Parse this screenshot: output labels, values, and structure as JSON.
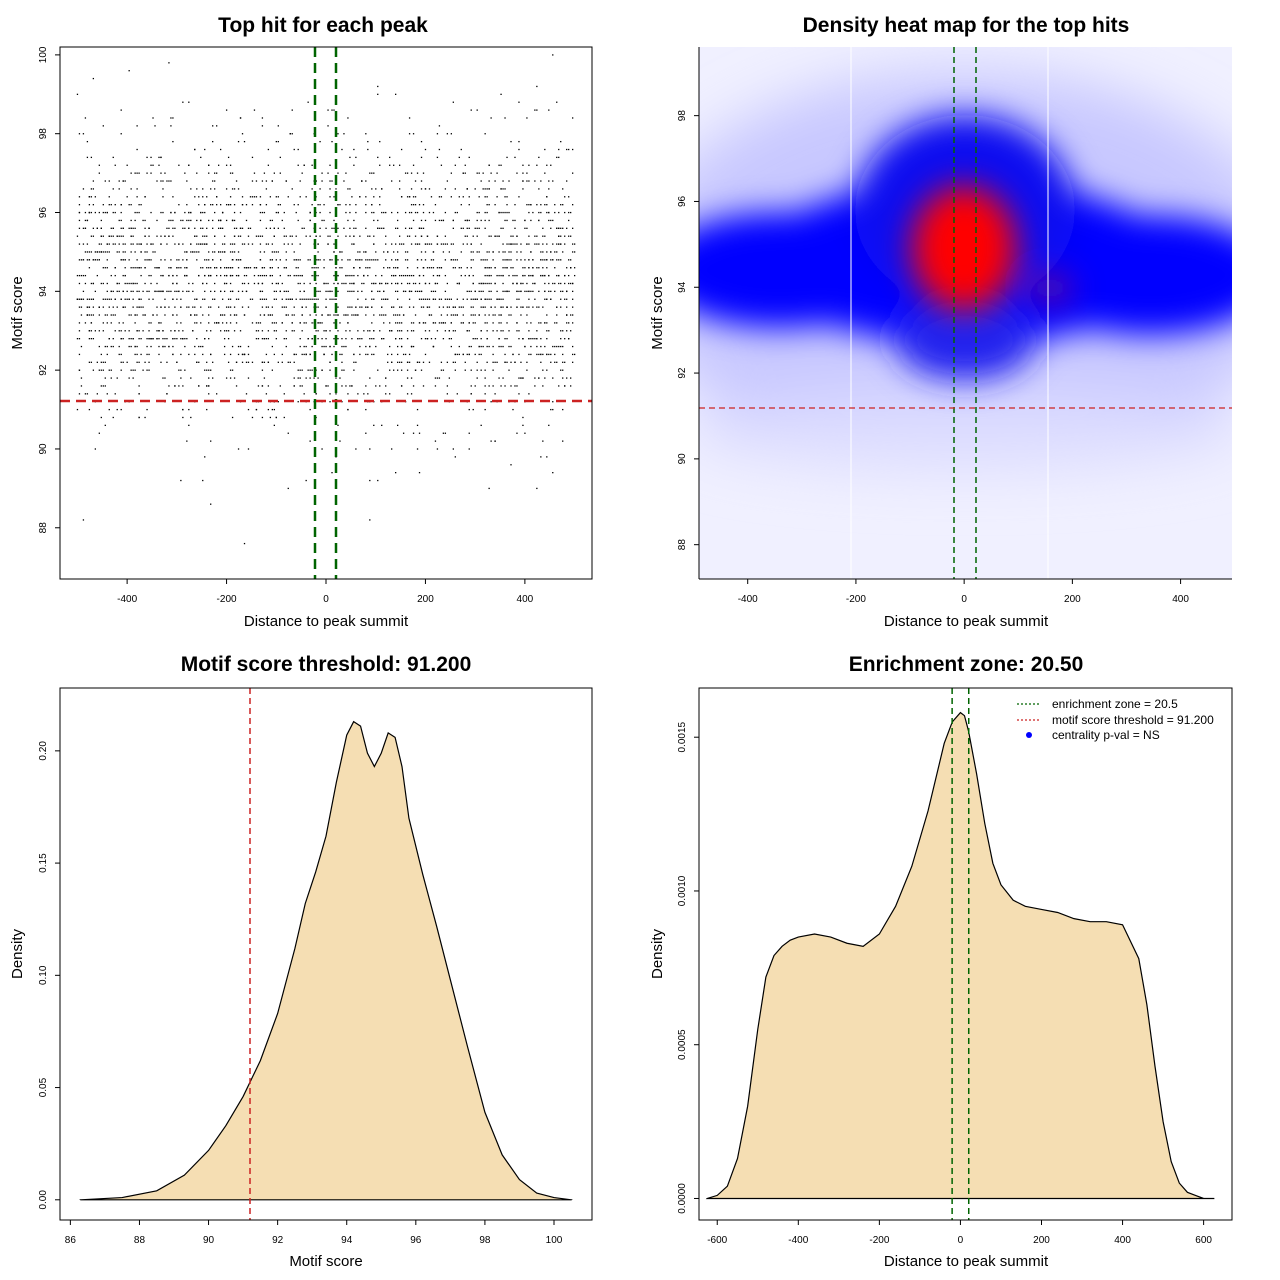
{
  "chart_data": [
    {
      "id": "p1",
      "type": "scatter",
      "title": "Top hit for each peak",
      "xlabel": "Distance to peak summit",
      "ylabel": "Motif score",
      "xlim": [
        -535,
        535
      ],
      "ylim": [
        86.7,
        100.2
      ],
      "xticks": [
        "-400",
        "-200",
        "0",
        "200",
        "400"
      ],
      "yticks": [
        "88",
        "90",
        "92",
        "94",
        "96",
        "98",
        "100"
      ],
      "vlines": [
        -20.5,
        20.5
      ],
      "hline": 91.2,
      "line_colors": {
        "enrichment_zone": "#006400",
        "threshold": "#cc2222"
      },
      "points": {
        "count": 3200,
        "x_range": [
          -500,
          500
        ],
        "mode_y": 94.2,
        "note": "top-hit score vs distance for each peak, approx. uniform in distance, density concentrated 92-97"
      }
    },
    {
      "id": "p2",
      "type": "heatmap",
      "title": "Density heat map for the top hits",
      "xlabel": "Distance to peak summit",
      "ylabel": "Motif score",
      "xlim": [
        -490,
        495
      ],
      "ylim": [
        87.2,
        99.6
      ],
      "xticks": [
        "-400",
        "-200",
        "0",
        "200",
        "400"
      ],
      "yticks": [
        "88",
        "90",
        "92",
        "94",
        "96",
        "98"
      ],
      "vlines": [
        -20.5,
        20.5
      ],
      "hline": 91.2,
      "colormap": [
        "#ffffff",
        "#0000ff",
        "#ff0000"
      ],
      "hotspot": {
        "x": 0,
        "y": 95.1
      },
      "side_bands": [
        {
          "x": -370,
          "y": 94.3
        },
        {
          "x": 330,
          "y": 94.2
        }
      ]
    },
    {
      "id": "p3",
      "type": "area",
      "title": "Motif score threshold: 91.200",
      "xlabel": "Motif score",
      "ylabel": "Density",
      "xlim": [
        85.7,
        101.1
      ],
      "ylim": [
        -0.009,
        0.228
      ],
      "xticks": [
        "86",
        "88",
        "90",
        "92",
        "94",
        "96",
        "98",
        "100"
      ],
      "yticks": [
        "0.00",
        "0.05",
        "0.10",
        "0.15",
        "0.20"
      ],
      "fill": "#f5deb3",
      "vline": 91.2,
      "x": [
        86.3,
        87.5,
        88.5,
        89.3,
        90.0,
        90.5,
        91.0,
        91.5,
        92.0,
        92.5,
        92.8,
        93.1,
        93.4,
        93.7,
        94.0,
        94.2,
        94.4,
        94.6,
        94.8,
        95.0,
        95.2,
        95.4,
        95.6,
        95.8,
        96.2,
        96.6,
        97.0,
        97.5,
        98.0,
        98.5,
        99.0,
        99.5,
        100.0,
        100.5
      ],
      "y": [
        0.0,
        0.001,
        0.004,
        0.011,
        0.022,
        0.033,
        0.046,
        0.062,
        0.083,
        0.112,
        0.132,
        0.146,
        0.162,
        0.186,
        0.207,
        0.213,
        0.211,
        0.199,
        0.193,
        0.199,
        0.208,
        0.206,
        0.193,
        0.17,
        0.145,
        0.122,
        0.098,
        0.068,
        0.039,
        0.02,
        0.009,
        0.003,
        0.001,
        0.0
      ]
    },
    {
      "id": "p4",
      "type": "area",
      "title": "Enrichment zone: 20.50",
      "xlabel": "Distance to peak summit",
      "ylabel": "Density",
      "xlim": [
        -645,
        670
      ],
      "ylim": [
        -7e-05,
        0.00166
      ],
      "xticks": [
        "-600",
        "-400",
        "-200",
        "0",
        "200",
        "400",
        "600"
      ],
      "yticks": [
        "0.0000",
        "0.0005",
        "0.0010",
        "0.0015"
      ],
      "fill": "#f5deb3",
      "vlines": [
        -20.5,
        20.5
      ],
      "x": [
        -625,
        -600,
        -575,
        -550,
        -525,
        -500,
        -480,
        -460,
        -440,
        -420,
        -400,
        -360,
        -320,
        -280,
        -240,
        -200,
        -160,
        -120,
        -80,
        -40,
        -20,
        0,
        10,
        20,
        40,
        60,
        80,
        100,
        130,
        160,
        200,
        240,
        280,
        320,
        360,
        400,
        440,
        460,
        480,
        500,
        520,
        540,
        560,
        580,
        600,
        625
      ],
      "y": [
        0.0,
        1e-05,
        4e-05,
        0.00013,
        0.0003,
        0.00055,
        0.00072,
        0.00079,
        0.00082,
        0.00084,
        0.00085,
        0.00086,
        0.00085,
        0.00083,
        0.00082,
        0.00086,
        0.00095,
        0.00108,
        0.00126,
        0.00148,
        0.00155,
        0.00158,
        0.00157,
        0.00152,
        0.00138,
        0.00122,
        0.00109,
        0.00102,
        0.00097,
        0.00095,
        0.00094,
        0.00093,
        0.00091,
        0.0009,
        0.0009,
        0.00089,
        0.00078,
        0.00063,
        0.00043,
        0.00025,
        0.00012,
        5e-05,
        2e-05,
        1e-05,
        0.0,
        0.0
      ]
    }
  ],
  "legend": {
    "position": "top-right",
    "items": [
      {
        "label": "enrichment zone = 20.5",
        "kind": "dotted-line",
        "color": "#006400"
      },
      {
        "label": "motif score threshold = 91.200",
        "kind": "dotted-line",
        "color": "#cc2222"
      },
      {
        "label": "centrality p-val = NS",
        "kind": "point",
        "color": "#0000ff"
      }
    ]
  }
}
